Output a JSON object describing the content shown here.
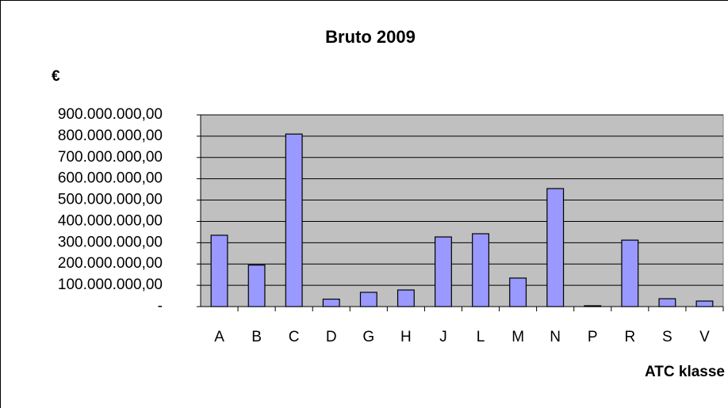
{
  "chart_data": {
    "type": "bar",
    "title": "Bruto 2009",
    "y_label": "€",
    "x_label": "ATC klasse",
    "categories": [
      "A",
      "B",
      "C",
      "D",
      "G",
      "H",
      "J",
      "L",
      "M",
      "N",
      "P",
      "R",
      "S",
      "V"
    ],
    "values": [
      335000000,
      195000000,
      810000000,
      35000000,
      67000000,
      78000000,
      327000000,
      342000000,
      134000000,
      554000000,
      4000000,
      312000000,
      37000000,
      26000000
    ],
    "color": "#9999ff",
    "ylim": [
      0,
      900000000
    ],
    "yticks": [
      {
        "value": 0,
        "label": "-"
      },
      {
        "value": 100000000,
        "label": "100.000.000,00"
      },
      {
        "value": 200000000,
        "label": "200.000.000,00"
      },
      {
        "value": 300000000,
        "label": "300.000.000,00"
      },
      {
        "value": 400000000,
        "label": "400.000.000,00"
      },
      {
        "value": 500000000,
        "label": "500.000.000,00"
      },
      {
        "value": 600000000,
        "label": "600.000.000,00"
      },
      {
        "value": 700000000,
        "label": "700.000.000,00"
      },
      {
        "value": 800000000,
        "label": "800.000.000,00"
      },
      {
        "value": 900000000,
        "label": "900.000.000,00"
      }
    ],
    "grid": true
  }
}
